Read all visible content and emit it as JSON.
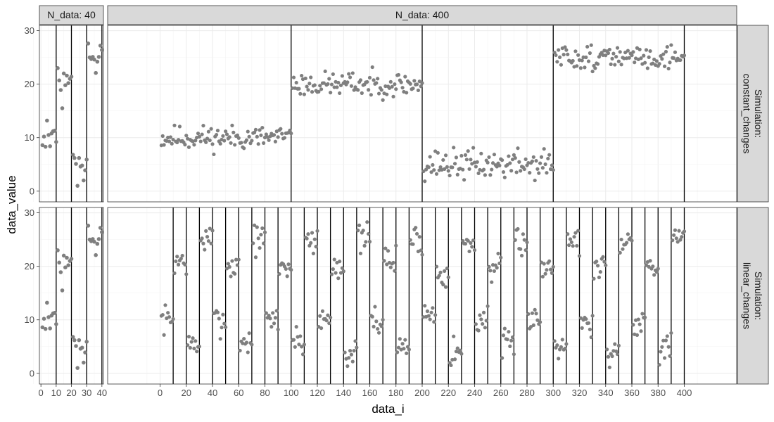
{
  "chart_data": {
    "type": "scatter",
    "xlabel": "data_i",
    "ylabel": "data_value",
    "color": "#7f7f7f",
    "ylim": [
      -2,
      31
    ],
    "ytick_labels": [
      "0",
      "10",
      "20",
      "30"
    ],
    "facet_columns": [
      {
        "label": "N_data: 40",
        "xlim": [
          -1,
          41
        ],
        "xtick_labels": [
          "0",
          "10",
          "20",
          "30",
          "40"
        ]
      },
      {
        "label": "N_data: 400",
        "xlim": [
          -40,
          440
        ],
        "xtick_labels": [
          "0",
          "20",
          "40",
          "60",
          "80",
          "100",
          "120",
          "140",
          "160",
          "180",
          "200",
          "220",
          "240",
          "260",
          "280",
          "300",
          "320",
          "340",
          "360",
          "380",
          "400"
        ]
      }
    ],
    "facet_rows": [
      {
        "label_line1": "Simulation:",
        "label_line2": "constant_changes"
      },
      {
        "label_line1": "Simulation:",
        "label_line2": "linear_changes"
      }
    ],
    "panels": [
      {
        "row": 0,
        "col": 0,
        "changepoints": [
          10,
          20,
          30,
          40
        ],
        "values": [
          8.6,
          10.2,
          8.3,
          13.2,
          10.5,
          8.4,
          10.8,
          11.2,
          11.3,
          9.2,
          23.0,
          20.7,
          18.9,
          15.5,
          22.0,
          19.8,
          21.6,
          20.2,
          21.0,
          21.4,
          6.8,
          6.2,
          5.1,
          1.0,
          6.2,
          4.6,
          4.8,
          2.0,
          3.9,
          5.9,
          27.6,
          25.0,
          24.7,
          25.1,
          24.6,
          22.1,
          24.2,
          25.1,
          27.2,
          26.4
        ]
      },
      {
        "row": 0,
        "col": 1,
        "changepoints": [
          100,
          200,
          300,
          400
        ],
        "segments": [
          {
            "start": 0,
            "end": 100,
            "mean": 10,
            "spread": 1.8,
            "seed": 11
          },
          {
            "start": 100,
            "end": 200,
            "mean": 20,
            "spread": 1.8,
            "seed": 23
          },
          {
            "start": 200,
            "end": 300,
            "mean": 5,
            "spread": 2.2,
            "seed": 37
          },
          {
            "start": 300,
            "end": 400,
            "mean": 25,
            "spread": 1.8,
            "seed": 51
          }
        ]
      },
      {
        "row": 1,
        "col": 0,
        "changepoints": [
          10,
          20,
          30,
          40
        ],
        "values": [
          8.6,
          10.2,
          8.3,
          13.2,
          10.5,
          8.4,
          10.8,
          11.2,
          11.3,
          9.2,
          23.0,
          20.7,
          18.9,
          15.5,
          22.0,
          19.8,
          21.6,
          20.2,
          21.0,
          21.4,
          6.8,
          6.2,
          5.1,
          1.0,
          6.2,
          4.6,
          4.8,
          2.0,
          3.9,
          5.9,
          27.6,
          25.0,
          24.7,
          25.1,
          24.6,
          22.1,
          24.2,
          25.1,
          27.2,
          26.4
        ]
      },
      {
        "row": 1,
        "col": 1,
        "changepoints": [
          10,
          20,
          30,
          40,
          50,
          60,
          70,
          80,
          90,
          100,
          110,
          120,
          130,
          140,
          150,
          160,
          170,
          180,
          190,
          200,
          210,
          220,
          230,
          240,
          250,
          260,
          270,
          280,
          290,
          300,
          310,
          320,
          330,
          340,
          350,
          360,
          370,
          380,
          390,
          400
        ],
        "segment_means": [
          10,
          21,
          5,
          25,
          10,
          20,
          6,
          25,
          10,
          20,
          6,
          25,
          10,
          20,
          4,
          25,
          10,
          21,
          5,
          25,
          11,
          19,
          4,
          24,
          10,
          20,
          5,
          25,
          10,
          20,
          6,
          25,
          9,
          20,
          4,
          25,
          10,
          20,
          5,
          25
        ],
        "segment_spread": 2.2,
        "seed": 7
      }
    ]
  }
}
